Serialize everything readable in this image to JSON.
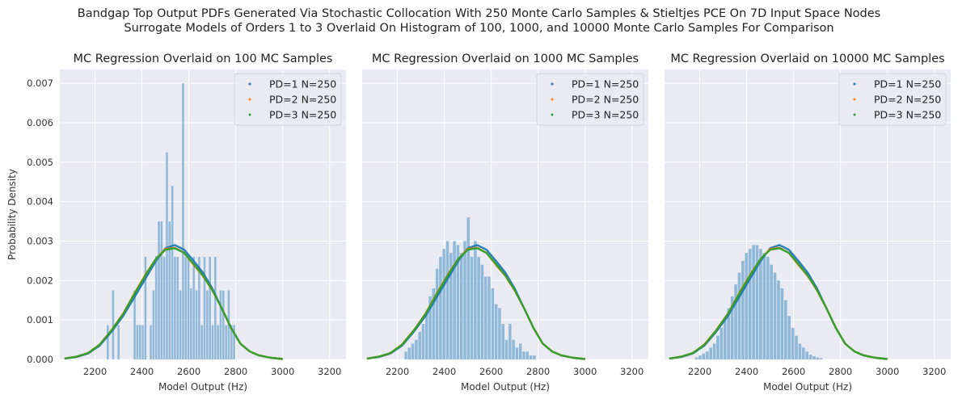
{
  "figure": {
    "suptitle_line1": "Bandgap Top Output PDFs Generated Via Stochastic Collocation With 250 Monte Carlo Samples & Stieltjes PCE On 7D Input Space Nodes",
    "suptitle_line2": "Surrogate Models of Orders 1 to 3 Overlaid On Histogram of 100, 1000, and 10000 Monte Carlo Samples For Comparison",
    "colors": {
      "background": "#eaeaf2",
      "grid": "#ffffff",
      "histogram": "#7fafd5",
      "pd1": "#1f77b4",
      "pd2": "#ff7f0e",
      "pd3": "#2ca02c"
    }
  },
  "chart_data": [
    {
      "type": "bar",
      "title": "MC Regression Overlaid on 100 MC Samples",
      "xlabel": "Model Output (Hz)",
      "ylabel": "Probability Density",
      "xlim": [
        2050,
        3270
      ],
      "ylim": [
        0,
        0.00735
      ],
      "xticks": [
        2200,
        2400,
        2600,
        2800,
        3000,
        3200
      ],
      "yticks": [
        0,
        0.001,
        0.002,
        0.003,
        0.004,
        0.005,
        0.006,
        0.007
      ],
      "ytick_labels": [
        "0.000",
        "0.001",
        "0.002",
        "0.003",
        "0.004",
        "0.005",
        "0.006",
        "0.007"
      ],
      "grid": true,
      "legend_position": "top-right",
      "legend": [
        "PD=1 N=250",
        "PD=2 N=250",
        "PD=3 N=250"
      ],
      "histogram": {
        "bin_start": 2250,
        "bin_width": 11.46,
        "densities": [
          0.00087,
          0,
          0.00175,
          0,
          0.00087,
          0,
          0,
          0,
          0,
          0,
          0.00175,
          0.00087,
          0.00087,
          0.00087,
          0.0026,
          0,
          0.00087,
          0.00175,
          0.00262,
          0.0035,
          0.0035,
          0.0026,
          0.00525,
          0.0035,
          0.0044,
          0.0026,
          0.0026,
          0.00175,
          0.007,
          0.0026,
          0.0026,
          0.0018,
          0.0026,
          0.00175,
          0.0026,
          0.00087,
          0.0026,
          0.00175,
          0.0026,
          0.00087,
          0.0026,
          0.00087,
          0.00175,
          0.00175,
          0.00087,
          0.00175,
          0.00087,
          0.00087
        ]
      },
      "series": [
        {
          "name": "PD=1 N=250",
          "x": [
            2070,
            2120,
            2170,
            2220,
            2270,
            2320,
            2370,
            2420,
            2460,
            2500,
            2540,
            2580,
            2620,
            2660,
            2700,
            2740,
            2780,
            2820,
            2860,
            2900,
            2950,
            3000
          ],
          "values": [
            2e-05,
            6e-05,
            0.00015,
            0.00035,
            0.0007,
            0.0011,
            0.0016,
            0.0021,
            0.0025,
            0.00282,
            0.0029,
            0.00278,
            0.0025,
            0.0022,
            0.0018,
            0.0013,
            0.0008,
            0.0004,
            0.0002,
            0.0001,
            4e-05,
            1e-05
          ]
        },
        {
          "name": "PD=2 N=250",
          "x": [
            2070,
            2120,
            2170,
            2220,
            2270,
            2320,
            2370,
            2420,
            2460,
            2500,
            2540,
            2580,
            2620,
            2660,
            2700,
            2740,
            2780,
            2820,
            2860,
            2900,
            2950,
            3000
          ],
          "values": [
            2e-05,
            7e-05,
            0.00016,
            0.00038,
            0.00074,
            0.00116,
            0.0017,
            0.0022,
            0.00255,
            0.0028,
            0.00283,
            0.0027,
            0.0024,
            0.00212,
            0.00175,
            0.0013,
            0.0008,
            0.0004,
            0.0002,
            0.0001,
            4e-05,
            1e-05
          ]
        },
        {
          "name": "PD=3 N=250",
          "x": [
            2070,
            2120,
            2170,
            2220,
            2270,
            2320,
            2370,
            2420,
            2460,
            2500,
            2540,
            2580,
            2620,
            2660,
            2700,
            2740,
            2780,
            2820,
            2860,
            2900,
            2950,
            3000
          ],
          "values": [
            2e-05,
            7e-05,
            0.00016,
            0.00037,
            0.00073,
            0.00115,
            0.00168,
            0.00218,
            0.00255,
            0.00278,
            0.00282,
            0.0027,
            0.00242,
            0.00213,
            0.00176,
            0.0013,
            0.0008,
            0.0004,
            0.0002,
            0.0001,
            4e-05,
            1e-05
          ]
        }
      ]
    },
    {
      "type": "bar",
      "title": "MC Regression Overlaid on 1000 MC Samples",
      "xlabel": "Model Output (Hz)",
      "ylabel": "",
      "xlim": [
        2050,
        3270
      ],
      "ylim": [
        0,
        0.00735
      ],
      "xticks": [
        2200,
        2400,
        2600,
        2800,
        3000,
        3200
      ],
      "yticks": [
        0,
        0.001,
        0.002,
        0.003,
        0.004,
        0.005,
        0.006,
        0.007
      ],
      "grid": true,
      "legend_position": "top-right",
      "legend": [
        "PD=1 N=250",
        "PD=2 N=250",
        "PD=3 N=250"
      ],
      "histogram": {
        "bin_start": 2230,
        "bin_width": 14.8,
        "densities": [
          0.0002,
          0.0003,
          0.0004,
          0.0005,
          0.0007,
          0.0009,
          0.0012,
          0.0016,
          0.0018,
          0.0023,
          0.0026,
          0.0028,
          0.003,
          0.0027,
          0.003,
          0.0029,
          0.0027,
          0.003,
          0.0036,
          0.0026,
          0.003,
          0.0026,
          0.0024,
          0.0021,
          0.0021,
          0.0018,
          0.0014,
          0.0013,
          0.0009,
          0.0005,
          0.0009,
          0.0005,
          0.0003,
          0.0004,
          0.0002,
          0.0002,
          0.0001,
          0.0001
        ]
      },
      "series": [
        {
          "name": "PD=1 N=250",
          "x": [
            2070,
            2120,
            2170,
            2220,
            2270,
            2320,
            2370,
            2420,
            2460,
            2500,
            2540,
            2580,
            2620,
            2660,
            2700,
            2740,
            2780,
            2820,
            2860,
            2900,
            2950,
            3000
          ],
          "values": [
            2e-05,
            6e-05,
            0.00015,
            0.00035,
            0.0007,
            0.0011,
            0.0016,
            0.0021,
            0.0025,
            0.00282,
            0.0029,
            0.00278,
            0.0025,
            0.0022,
            0.0018,
            0.0013,
            0.0008,
            0.0004,
            0.0002,
            0.0001,
            4e-05,
            1e-05
          ]
        },
        {
          "name": "PD=2 N=250",
          "x": [
            2070,
            2120,
            2170,
            2220,
            2270,
            2320,
            2370,
            2420,
            2460,
            2500,
            2540,
            2580,
            2620,
            2660,
            2700,
            2740,
            2780,
            2820,
            2860,
            2900,
            2950,
            3000
          ],
          "values": [
            2e-05,
            7e-05,
            0.00016,
            0.00038,
            0.00074,
            0.00116,
            0.0017,
            0.0022,
            0.00255,
            0.0028,
            0.00283,
            0.0027,
            0.0024,
            0.00212,
            0.00175,
            0.0013,
            0.0008,
            0.0004,
            0.0002,
            0.0001,
            4e-05,
            1e-05
          ]
        },
        {
          "name": "PD=3 N=250",
          "x": [
            2070,
            2120,
            2170,
            2220,
            2270,
            2320,
            2370,
            2420,
            2460,
            2500,
            2540,
            2580,
            2620,
            2660,
            2700,
            2740,
            2780,
            2820,
            2860,
            2900,
            2950,
            3000
          ],
          "values": [
            2e-05,
            7e-05,
            0.00016,
            0.00037,
            0.00073,
            0.00115,
            0.00168,
            0.00218,
            0.00255,
            0.00278,
            0.00282,
            0.0027,
            0.00242,
            0.00213,
            0.00176,
            0.0013,
            0.0008,
            0.0004,
            0.0002,
            0.0001,
            4e-05,
            1e-05
          ]
        }
      ]
    },
    {
      "type": "bar",
      "title": "MC Regression Overlaid on 10000 MC Samples",
      "xlabel": "Model Output (Hz)",
      "ylabel": "",
      "xlim": [
        2050,
        3270
      ],
      "ylim": [
        0,
        0.00735
      ],
      "xticks": [
        2200,
        2400,
        2600,
        2800,
        3000,
        3200
      ],
      "yticks": [
        0,
        0.001,
        0.002,
        0.003,
        0.004,
        0.005,
        0.006,
        0.007
      ],
      "grid": true,
      "legend_position": "top-right",
      "legend": [
        "PD=1 N=250",
        "PD=2 N=250",
        "PD=3 N=250"
      ],
      "histogram": {
        "bin_start": 2180,
        "bin_width": 15.2,
        "densities": [
          5e-05,
          0.0001,
          0.00015,
          0.0002,
          0.0003,
          0.0004,
          0.0006,
          0.0008,
          0.001,
          0.0013,
          0.0016,
          0.0019,
          0.0022,
          0.0025,
          0.0027,
          0.0028,
          0.0029,
          0.0029,
          0.0028,
          0.0027,
          0.0026,
          0.0024,
          0.0022,
          0.002,
          0.0018,
          0.0015,
          0.0011,
          0.0008,
          0.0006,
          0.0004,
          0.0003,
          0.0002,
          0.00012,
          8e-05,
          5e-05,
          3e-05
        ]
      },
      "series": [
        {
          "name": "PD=1 N=250",
          "x": [
            2070,
            2120,
            2170,
            2220,
            2270,
            2320,
            2370,
            2420,
            2460,
            2500,
            2540,
            2580,
            2620,
            2660,
            2700,
            2740,
            2780,
            2820,
            2860,
            2900,
            2950,
            3000
          ],
          "values": [
            2e-05,
            6e-05,
            0.00015,
            0.00035,
            0.0007,
            0.0011,
            0.0016,
            0.0021,
            0.0025,
            0.00282,
            0.0029,
            0.00278,
            0.0025,
            0.0022,
            0.0018,
            0.0013,
            0.0008,
            0.0004,
            0.0002,
            0.0001,
            4e-05,
            1e-05
          ]
        },
        {
          "name": "PD=2 N=250",
          "x": [
            2070,
            2120,
            2170,
            2220,
            2270,
            2320,
            2370,
            2420,
            2460,
            2500,
            2540,
            2580,
            2620,
            2660,
            2700,
            2740,
            2780,
            2820,
            2860,
            2900,
            2950,
            3000
          ],
          "values": [
            2e-05,
            7e-05,
            0.00016,
            0.00038,
            0.00074,
            0.00116,
            0.0017,
            0.0022,
            0.00255,
            0.0028,
            0.00283,
            0.0027,
            0.0024,
            0.00212,
            0.00175,
            0.0013,
            0.0008,
            0.0004,
            0.0002,
            0.0001,
            4e-05,
            1e-05
          ]
        },
        {
          "name": "PD=3 N=250",
          "x": [
            2070,
            2120,
            2170,
            2220,
            2270,
            2320,
            2370,
            2420,
            2460,
            2500,
            2540,
            2580,
            2620,
            2660,
            2700,
            2740,
            2780,
            2820,
            2860,
            2900,
            2950,
            3000
          ],
          "values": [
            2e-05,
            7e-05,
            0.00016,
            0.00037,
            0.00073,
            0.00115,
            0.00168,
            0.00218,
            0.00255,
            0.00278,
            0.00282,
            0.0027,
            0.00242,
            0.00213,
            0.00176,
            0.0013,
            0.0008,
            0.0004,
            0.0002,
            0.0001,
            4e-05,
            1e-05
          ]
        }
      ]
    }
  ]
}
